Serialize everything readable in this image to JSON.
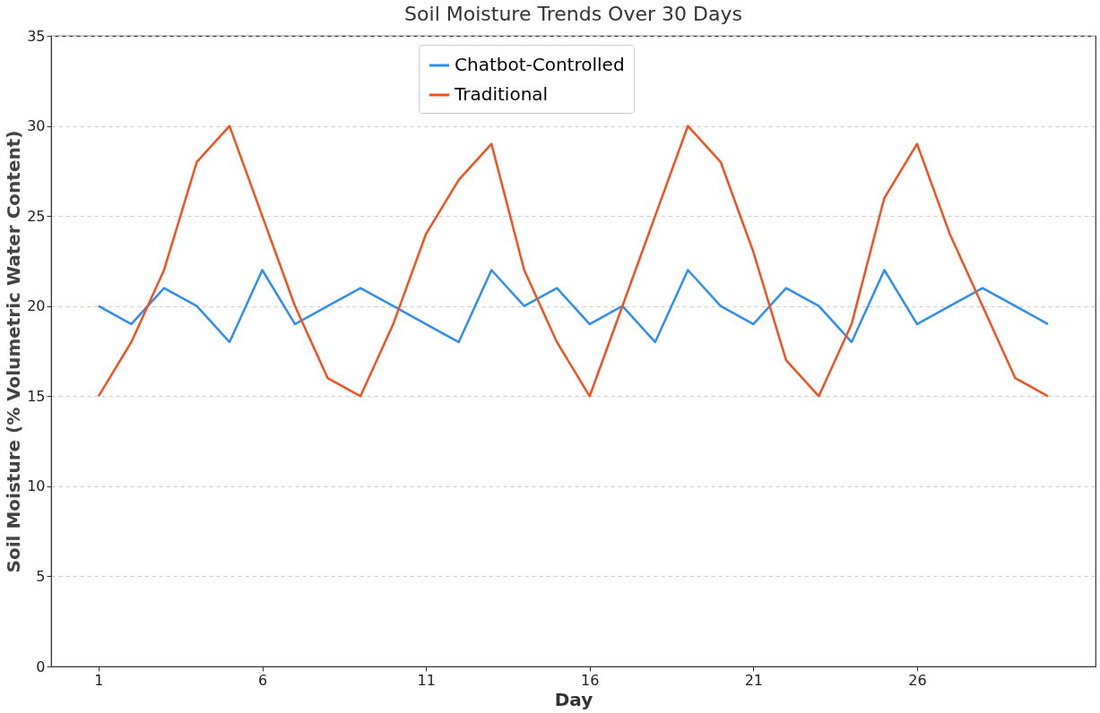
{
  "chart_data": {
    "type": "line",
    "title": "Soil Moisture Trends Over 30 Days",
    "xlabel": "Day",
    "ylabel": "Soil Moisture (% Volumetric Water Content)",
    "x": [
      1,
      2,
      3,
      4,
      5,
      6,
      7,
      8,
      9,
      10,
      11,
      12,
      13,
      14,
      15,
      16,
      17,
      18,
      19,
      20,
      21,
      22,
      23,
      24,
      25,
      26,
      27,
      28,
      29,
      30
    ],
    "series": [
      {
        "name": "Chatbot-Controlled",
        "color": "#2f8ff0",
        "values": [
          20,
          19,
          21,
          20,
          18,
          22,
          19,
          20,
          21,
          20,
          19,
          18,
          22,
          20,
          21,
          19,
          20,
          18,
          22,
          20,
          19,
          21,
          20,
          18,
          22,
          19,
          20,
          21,
          20,
          19
        ]
      },
      {
        "name": "Traditional",
        "color": "#f4511e",
        "values": [
          15,
          18,
          22,
          28,
          30,
          25,
          20,
          16,
          15,
          19,
          24,
          27,
          29,
          22,
          18,
          15,
          20,
          25,
          30,
          28,
          23,
          17,
          15,
          19,
          26,
          29,
          24,
          20,
          16,
          15
        ]
      }
    ],
    "xlim": [
      -0.45,
      31.45
    ],
    "xticks": [
      1,
      6,
      11,
      16,
      21,
      26
    ],
    "ylim": [
      0,
      35
    ],
    "yticks": [
      0,
      5,
      10,
      15,
      20,
      25,
      30,
      35
    ],
    "grid": "y",
    "legend": "top",
    "line_style": "solid",
    "marker": "none"
  }
}
